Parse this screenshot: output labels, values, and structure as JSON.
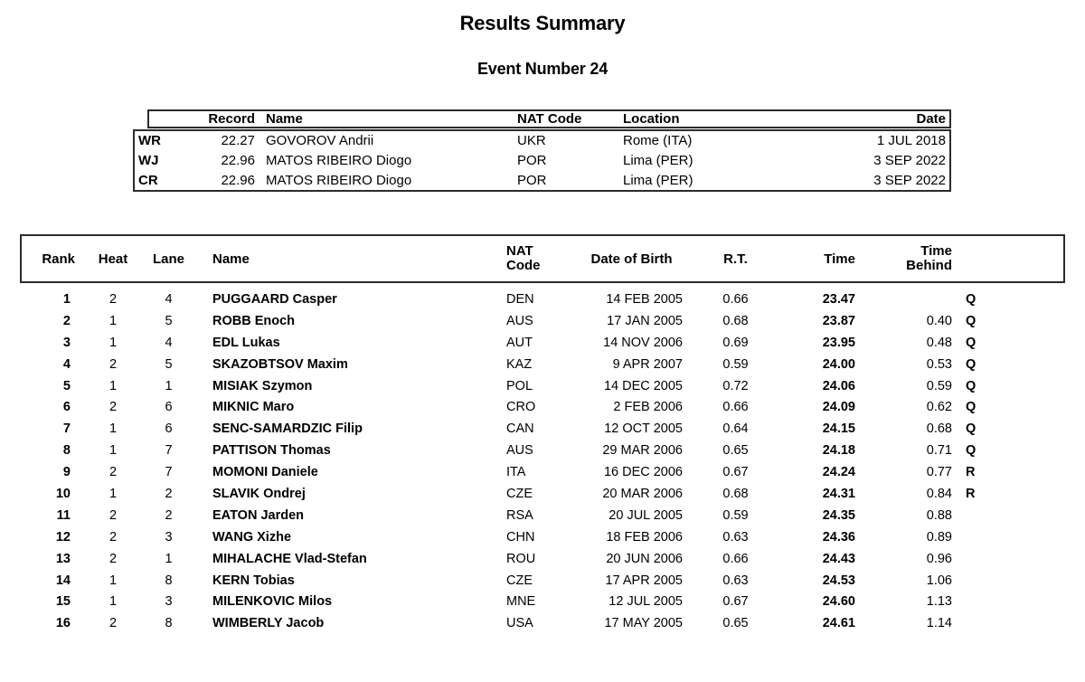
{
  "page": {
    "title": "Results Summary",
    "subtitle": "Event Number 24"
  },
  "records": {
    "headers": {
      "type": "",
      "record": "Record",
      "name": "Name",
      "nat": "NAT Code",
      "location": "Location",
      "date": "Date"
    },
    "rows": [
      {
        "type": "WR",
        "time": "22.27",
        "name": "GOVOROV Andrii",
        "nat": "UKR",
        "location": "Rome (ITA)",
        "date": "1 JUL 2018"
      },
      {
        "type": "WJ",
        "time": "22.96",
        "name": "MATOS RIBEIRO Diogo",
        "nat": "POR",
        "location": "Lima (PER)",
        "date": "3 SEP 2022"
      },
      {
        "type": "CR",
        "time": "22.96",
        "name": "MATOS RIBEIRO Diogo",
        "nat": "POR",
        "location": "Lima (PER)",
        "date": "3 SEP 2022"
      }
    ]
  },
  "results": {
    "headers": {
      "rank": "Rank",
      "heat": "Heat",
      "lane": "Lane",
      "name": "Name",
      "nat_line1": "NAT",
      "nat_line2": "Code",
      "dob": "Date of Birth",
      "rt": "R.T.",
      "time": "Time",
      "behind_line1": "Time",
      "behind_line2": "Behind",
      "qual": ""
    },
    "rows": [
      {
        "rank": "1",
        "heat": "2",
        "lane": "4",
        "name": "PUGGAARD Casper",
        "nat": "DEN",
        "dob": "14 FEB 2005",
        "rt": "0.66",
        "time": "23.47",
        "behind": "",
        "qual": "Q"
      },
      {
        "rank": "2",
        "heat": "1",
        "lane": "5",
        "name": "ROBB Enoch",
        "nat": "AUS",
        "dob": "17 JAN 2005",
        "rt": "0.68",
        "time": "23.87",
        "behind": "0.40",
        "qual": "Q"
      },
      {
        "rank": "3",
        "heat": "1",
        "lane": "4",
        "name": "EDL Lukas",
        "nat": "AUT",
        "dob": "14 NOV 2006",
        "rt": "0.69",
        "time": "23.95",
        "behind": "0.48",
        "qual": "Q"
      },
      {
        "rank": "4",
        "heat": "2",
        "lane": "5",
        "name": "SKAZOBTSOV Maxim",
        "nat": "KAZ",
        "dob": "9 APR 2007",
        "rt": "0.59",
        "time": "24.00",
        "behind": "0.53",
        "qual": "Q"
      },
      {
        "rank": "5",
        "heat": "1",
        "lane": "1",
        "name": "MISIAK Szymon",
        "nat": "POL",
        "dob": "14 DEC 2005",
        "rt": "0.72",
        "time": "24.06",
        "behind": "0.59",
        "qual": "Q"
      },
      {
        "rank": "6",
        "heat": "2",
        "lane": "6",
        "name": "MIKNIC Maro",
        "nat": "CRO",
        "dob": "2 FEB 2006",
        "rt": "0.66",
        "time": "24.09",
        "behind": "0.62",
        "qual": "Q"
      },
      {
        "rank": "7",
        "heat": "1",
        "lane": "6",
        "name": "SENC-SAMARDZIC Filip",
        "nat": "CAN",
        "dob": "12 OCT 2005",
        "rt": "0.64",
        "time": "24.15",
        "behind": "0.68",
        "qual": "Q"
      },
      {
        "rank": "8",
        "heat": "1",
        "lane": "7",
        "name": "PATTISON Thomas",
        "nat": "AUS",
        "dob": "29 MAR 2006",
        "rt": "0.65",
        "time": "24.18",
        "behind": "0.71",
        "qual": "Q"
      },
      {
        "rank": "9",
        "heat": "2",
        "lane": "7",
        "name": "MOMONI Daniele",
        "nat": "ITA",
        "dob": "16 DEC 2006",
        "rt": "0.67",
        "time": "24.24",
        "behind": "0.77",
        "qual": "R"
      },
      {
        "rank": "10",
        "heat": "1",
        "lane": "2",
        "name": "SLAVIK Ondrej",
        "nat": "CZE",
        "dob": "20 MAR 2006",
        "rt": "0.68",
        "time": "24.31",
        "behind": "0.84",
        "qual": "R"
      },
      {
        "rank": "11",
        "heat": "2",
        "lane": "2",
        "name": "EATON Jarden",
        "nat": "RSA",
        "dob": "20 JUL 2005",
        "rt": "0.59",
        "time": "24.35",
        "behind": "0.88",
        "qual": ""
      },
      {
        "rank": "12",
        "heat": "2",
        "lane": "3",
        "name": "WANG Xizhe",
        "nat": "CHN",
        "dob": "18 FEB 2006",
        "rt": "0.63",
        "time": "24.36",
        "behind": "0.89",
        "qual": ""
      },
      {
        "rank": "13",
        "heat": "2",
        "lane": "1",
        "name": "MIHALACHE Vlad-Stefan",
        "nat": "ROU",
        "dob": "20 JUN 2006",
        "rt": "0.66",
        "time": "24.43",
        "behind": "0.96",
        "qual": ""
      },
      {
        "rank": "14",
        "heat": "1",
        "lane": "8",
        "name": "KERN Tobias",
        "nat": "CZE",
        "dob": "17 APR 2005",
        "rt": "0.63",
        "time": "24.53",
        "behind": "1.06",
        "qual": ""
      },
      {
        "rank": "15",
        "heat": "1",
        "lane": "3",
        "name": "MILENKOVIC Milos",
        "nat": "MNE",
        "dob": "12 JUL 2005",
        "rt": "0.67",
        "time": "24.60",
        "behind": "1.13",
        "qual": ""
      },
      {
        "rank": "16",
        "heat": "2",
        "lane": "8",
        "name": "WIMBERLY Jacob",
        "nat": "USA",
        "dob": "17 MAY 2005",
        "rt": "0.65",
        "time": "24.61",
        "behind": "1.14",
        "qual": ""
      }
    ]
  }
}
